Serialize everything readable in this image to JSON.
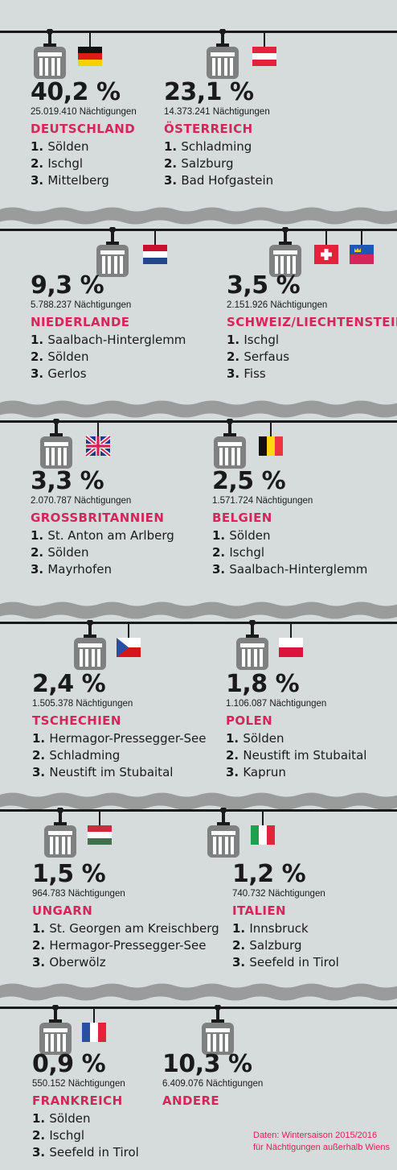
{
  "colors": {
    "background": "#d6dcdb",
    "band_wave": "#9a9c9c",
    "cable": "#1a1a1a",
    "gondola": "#7f8181",
    "accent": "#d6255a",
    "text": "#1a1a1a"
  },
  "chart_data": {
    "type": "table",
    "title": "",
    "rows": [
      {
        "share": "40,2 %",
        "value_percent": 40.2,
        "nights": "25.019.410 Nächtigungen",
        "country": "DEUTSCHLAND",
        "flags": [
          "de"
        ],
        "top": [
          "Sölden",
          "Ischgl",
          "Mittelberg"
        ]
      },
      {
        "share": "23,1 %",
        "value_percent": 23.1,
        "nights": "14.373.241 Nächtigungen",
        "country": "ÖSTERREICH",
        "flags": [
          "at"
        ],
        "top": [
          "Schladming",
          "Salzburg",
          "Bad Hofgastein"
        ]
      },
      {
        "share": "9,3 %",
        "value_percent": 9.3,
        "nights": "5.788.237 Nächtigungen",
        "country": "NIEDERLANDE",
        "flags": [
          "nl"
        ],
        "top": [
          "Saalbach-Hinterglemm",
          "Sölden",
          "Gerlos"
        ]
      },
      {
        "share": "3,5 %",
        "value_percent": 3.5,
        "nights": "2.151.926 Nächtigungen",
        "country": "SCHWEIZ/LIECHTENSTEIN",
        "flags": [
          "ch",
          "li"
        ],
        "top": [
          "Ischgl",
          "Serfaus",
          "Fiss"
        ]
      },
      {
        "share": "3,3 %",
        "value_percent": 3.3,
        "nights": "2.070.787 Nächtigungen",
        "country": "GROSSBRITANNIEN",
        "flags": [
          "gb"
        ],
        "top": [
          "St. Anton am Arlberg",
          "Sölden",
          "Mayrhofen"
        ]
      },
      {
        "share": "2,5 %",
        "value_percent": 2.5,
        "nights": "1.571.724 Nächtigungen",
        "country": "BELGIEN",
        "flags": [
          "be"
        ],
        "top": [
          "Sölden",
          "Ischgl",
          "Saalbach-Hinterglemm"
        ]
      },
      {
        "share": "2,4 %",
        "value_percent": 2.4,
        "nights": "1.505.378 Nächtigungen",
        "country": "TSCHECHIEN",
        "flags": [
          "cz"
        ],
        "top": [
          "Hermagor-Pressegger-See",
          "Schladming",
          "Neustift im Stubaital"
        ]
      },
      {
        "share": "1,8 %",
        "value_percent": 1.8,
        "nights": "1.106.087 Nächtigungen",
        "country": "POLEN",
        "flags": [
          "pl"
        ],
        "top": [
          "Sölden",
          "Neustift im Stubaital",
          "Kaprun"
        ]
      },
      {
        "share": "1,5 %",
        "value_percent": 1.5,
        "nights": "964.783 Nächtigungen",
        "country": "UNGARN",
        "flags": [
          "hu"
        ],
        "top": [
          "St. Georgen am Kreischberg",
          "Hermagor-Pressegger-See",
          "Oberwölz"
        ]
      },
      {
        "share": "1,2 %",
        "value_percent": 1.2,
        "nights": "740.732 Nächtigungen",
        "country": "ITALIEN",
        "flags": [
          "it"
        ],
        "top": [
          "Innsbruck",
          "Salzburg",
          "Seefeld in Tirol"
        ]
      },
      {
        "share": "0,9 %",
        "value_percent": 0.9,
        "nights": "550.152 Nächtigungen",
        "country": "FRANKREICH",
        "flags": [
          "fr"
        ],
        "top": [
          "Sölden",
          "Ischgl",
          "Seefeld in Tirol"
        ]
      },
      {
        "share": "10,3 %",
        "value_percent": 10.3,
        "nights": "6.409.076 Nächtigungen",
        "country": "ANDERE",
        "flags": [],
        "top": []
      }
    ]
  },
  "note": {
    "line1": "Daten: Wintersaison 2015/2016",
    "line2": "für Nächtigungen außerhalb Wiens"
  }
}
